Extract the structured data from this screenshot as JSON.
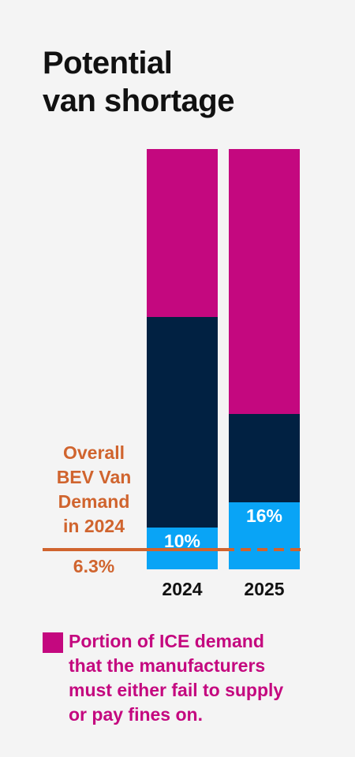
{
  "title": {
    "line1": "Potential",
    "line2": "van shortage"
  },
  "colors": {
    "fines": "#c4087f",
    "ice_supplied": "#012142",
    "bev": "#09a4f6",
    "reference": "#d0642e"
  },
  "chart_data": {
    "type": "bar",
    "stacked": true,
    "categories": [
      "2024",
      "2025"
    ],
    "series": [
      {
        "key": "bev",
        "values": [
          10,
          16
        ],
        "labels": [
          "10%",
          "16%"
        ],
        "color": "#09a4f6"
      },
      {
        "key": "ice_supplied",
        "values": [
          50,
          21
        ],
        "color": "#012142"
      },
      {
        "key": "fines",
        "values": [
          40,
          63
        ],
        "color": "#c4087f"
      }
    ],
    "ylim": [
      0,
      100
    ],
    "reference_line": {
      "value": 6.3,
      "label_lines": [
        "Overall",
        "BEV Van",
        "Demand",
        "in 2024"
      ],
      "value_label": "6.3%"
    },
    "legend": {
      "text_lines": [
        "Portion of ICE demand",
        "that the manufacturers",
        "must either fail to supply",
        "or pay fines on."
      ]
    }
  }
}
